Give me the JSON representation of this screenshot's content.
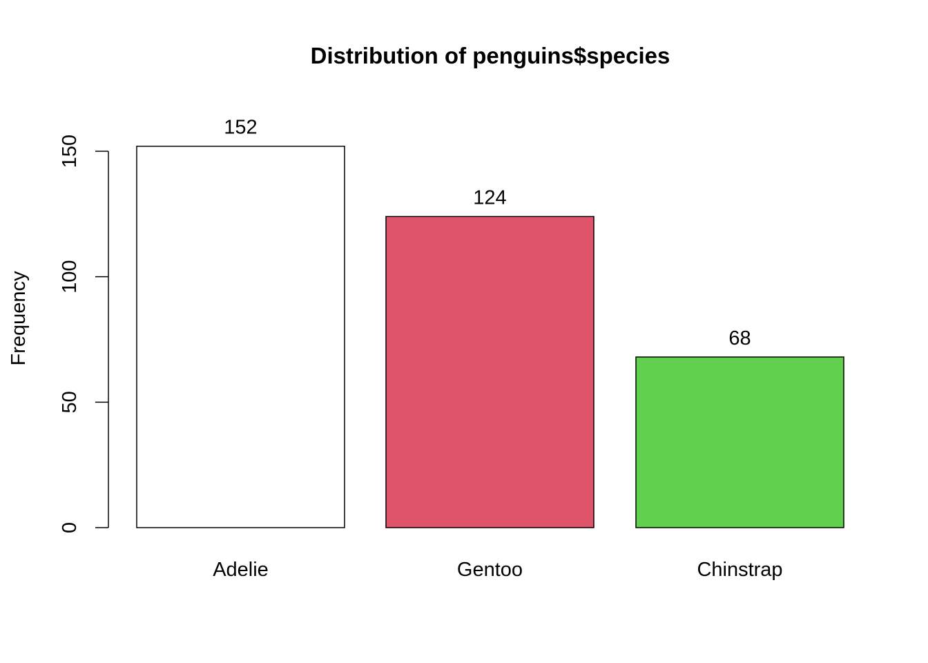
{
  "chart_data": {
    "type": "bar",
    "title": "Distribution of penguins$species",
    "xlabel": "",
    "ylabel": "Frequency",
    "categories": [
      "Adelie",
      "Gentoo",
      "Chinstrap"
    ],
    "values": [
      152,
      124,
      68
    ],
    "data_labels": [
      "152",
      "124",
      "68"
    ],
    "bar_colors": [
      "#FFFFFF",
      "#DF536B",
      "#61D04F"
    ],
    "bar_border_color": "#000000",
    "ylim": [
      0,
      150
    ],
    "yticks": [
      0,
      50,
      100,
      150
    ],
    "ytick_labels": [
      "0",
      "50",
      "100",
      "150"
    ],
    "grid": false,
    "legend": "none"
  }
}
